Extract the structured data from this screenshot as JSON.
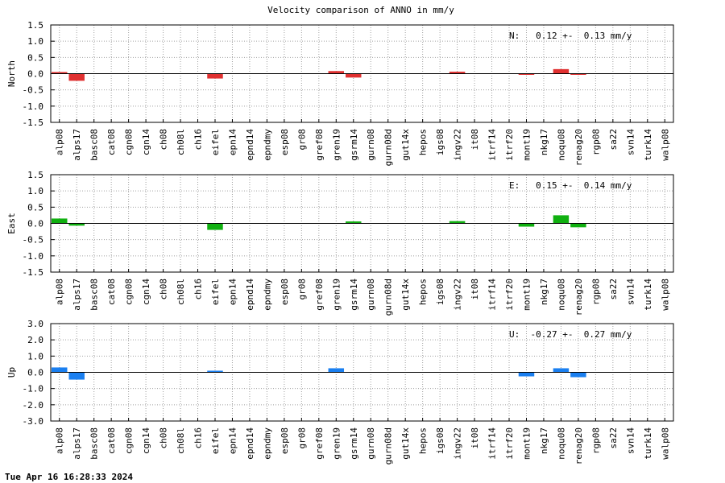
{
  "title": "Velocity comparison of ANNO in mm/y",
  "footer": "Tue Apr 16 16:28:33 2024",
  "chart_data": [
    {
      "type": "bar",
      "ylabel": "North",
      "color": "#e03030",
      "ylim": [
        -1.5,
        1.5
      ],
      "yticks": [
        -1.5,
        -1.0,
        -0.5,
        0.0,
        0.5,
        1.0,
        1.5
      ],
      "ytick_labels": [
        "-1.5",
        "-1.0",
        "-0.5",
        "0.0",
        "0.5",
        "1.0",
        "1.5"
      ],
      "categories": [
        "alp08",
        "alps17",
        "basc08",
        "cat08",
        "cgn08",
        "cgn14",
        "ch08",
        "ch08l",
        "ch16",
        "eifel",
        "epn14",
        "epnd14",
        "epndmy",
        "esp08",
        "gr08",
        "gref08",
        "gren19",
        "gsrm14",
        "gurn08",
        "gurn08d",
        "gut14x",
        "hepos",
        "igs08",
        "ingv22",
        "it08",
        "itrf14",
        "itrf20",
        "mont19",
        "nkg17",
        "noqu08",
        "renag20",
        "rgp08",
        "sa22",
        "svn14",
        "turk14",
        "walp08"
      ],
      "values": [
        0.05,
        -0.22,
        null,
        null,
        null,
        null,
        null,
        null,
        null,
        -0.15,
        null,
        null,
        null,
        null,
        null,
        null,
        0.08,
        -0.12,
        null,
        null,
        null,
        null,
        null,
        0.06,
        null,
        null,
        null,
        -0.02,
        null,
        0.14,
        -0.02,
        null,
        null,
        null,
        null,
        null
      ],
      "annotation": "N:   0.12 +-  0.13 mm/y"
    },
    {
      "type": "bar",
      "ylabel": "East",
      "color": "#10b010",
      "ylim": [
        -1.5,
        1.5
      ],
      "yticks": [
        -1.5,
        -1.0,
        -0.5,
        0.0,
        0.5,
        1.0,
        1.5
      ],
      "ytick_labels": [
        "-1.5",
        "-1.0",
        "-0.5",
        "0.0",
        "0.5",
        "1.0",
        "1.5"
      ],
      "categories": [
        "alp08",
        "alps17",
        "basc08",
        "cat08",
        "cgn08",
        "cgn14",
        "ch08",
        "ch08l",
        "ch16",
        "eifel",
        "epn14",
        "epnd14",
        "epndmy",
        "esp08",
        "gr08",
        "gref08",
        "gren19",
        "gsrm14",
        "gurn08",
        "gurn08d",
        "gut14x",
        "hepos",
        "igs08",
        "ingv22",
        "it08",
        "itrf14",
        "itrf20",
        "mont19",
        "nkg17",
        "noqu08",
        "renag20",
        "rgp08",
        "sa22",
        "svn14",
        "turk14",
        "walp08"
      ],
      "values": [
        0.15,
        -0.07,
        null,
        null,
        null,
        null,
        null,
        null,
        null,
        -0.2,
        null,
        null,
        null,
        null,
        null,
        null,
        null,
        0.06,
        null,
        null,
        null,
        null,
        null,
        0.07,
        null,
        null,
        null,
        -0.1,
        null,
        0.25,
        -0.12,
        null,
        null,
        null,
        null,
        null
      ],
      "annotation": "E:   0.15 +-  0.14 mm/y"
    },
    {
      "type": "bar",
      "ylabel": "Up",
      "color": "#1a7ff0",
      "ylim": [
        -3.0,
        3.0
      ],
      "yticks": [
        -3.0,
        -2.0,
        -1.0,
        0.0,
        1.0,
        2.0,
        3.0
      ],
      "ytick_labels": [
        "-3.0",
        "-2.0",
        "-1.0",
        "0.0",
        "1.0",
        "2.0",
        "3.0"
      ],
      "categories": [
        "alp08",
        "alps17",
        "basc08",
        "cat08",
        "cgn08",
        "cgn14",
        "ch08",
        "ch08l",
        "ch16",
        "eifel",
        "epn14",
        "epnd14",
        "epndmy",
        "esp08",
        "gr08",
        "gref08",
        "gren19",
        "gsrm14",
        "gurn08",
        "gurn08d",
        "gut14x",
        "hepos",
        "igs08",
        "ingv22",
        "it08",
        "itrf14",
        "itrf20",
        "mont19",
        "nkg17",
        "noqu08",
        "renag20",
        "rgp08",
        "sa22",
        "svn14",
        "turk14",
        "walp08"
      ],
      "values": [
        0.3,
        -0.45,
        null,
        null,
        null,
        null,
        null,
        null,
        null,
        0.1,
        null,
        null,
        null,
        null,
        null,
        null,
        0.25,
        null,
        null,
        null,
        null,
        null,
        null,
        null,
        null,
        null,
        null,
        -0.25,
        null,
        0.25,
        -0.3,
        null,
        null,
        null,
        null,
        null
      ],
      "annotation": "U:  -0.27 +-  0.27 mm/y"
    }
  ]
}
